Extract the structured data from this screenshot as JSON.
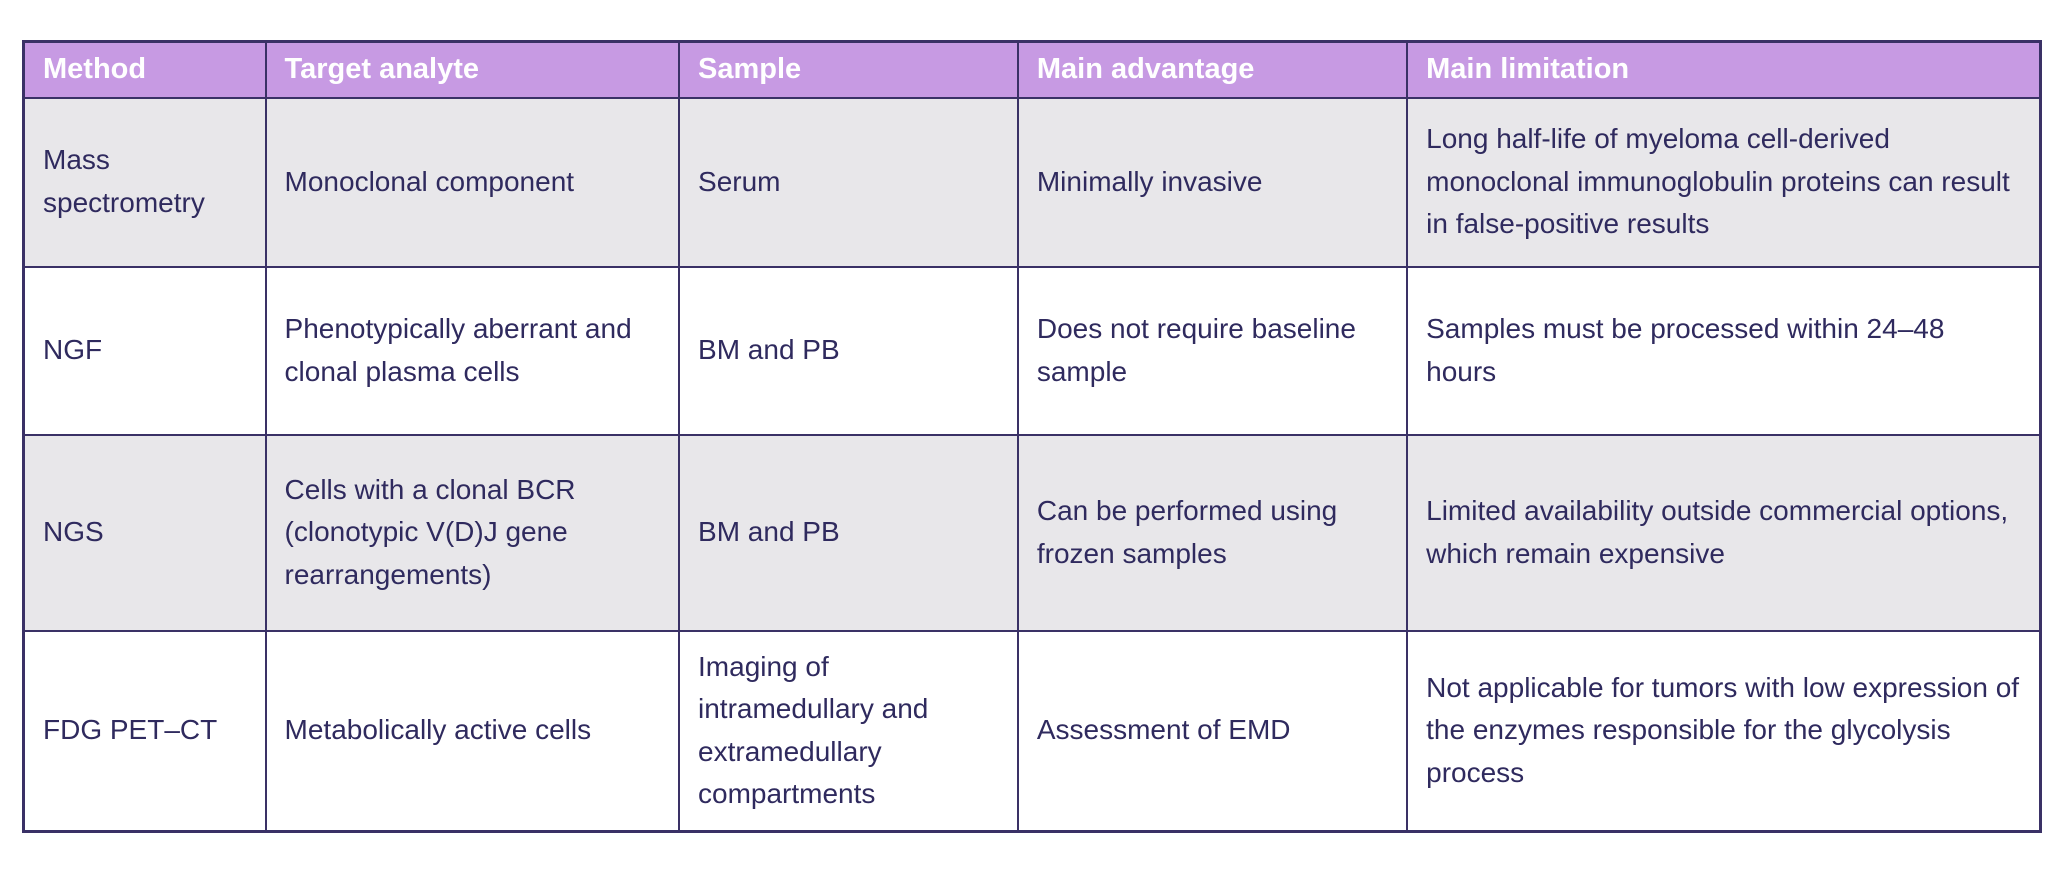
{
  "colors": {
    "header_bg": "#c79ae3",
    "border": "#3a3166",
    "body_text": "#2f2a5e",
    "header_text": "#ffffff",
    "row_alt_bg": "#e8e7ea",
    "row_bg": "#ffffff"
  },
  "table": {
    "columns": [
      "Method",
      "Target analyte",
      "Sample",
      "Main advantage",
      "Main limitation"
    ],
    "rows": [
      {
        "cells": [
          "Mass spectrometry",
          "Monoclonal component",
          "Serum",
          "Minimally invasive",
          "Long half-life of myeloma cell-derived monoclonal immunoglobulin proteins can result in false-positive results"
        ]
      },
      {
        "cells": [
          "NGF",
          "Phenotypically aberrant and clonal plasma cells",
          "BM and PB",
          "Does not require baseline sample",
          "Samples must be processed within 24–48 hours"
        ]
      },
      {
        "cells": [
          "NGS",
          "Cells with a clonal BCR (clonotypic V(D)J gene rearrangements)",
          "BM and PB",
          "Can be performed using frozen samples",
          "Limited availability outside commercial options, which remain expensive"
        ]
      },
      {
        "cells": [
          "FDG PET–CT",
          "Metabolically active cells",
          "Imaging of intramedullary and extramedullary compartments",
          "Assessment of EMD",
          "Not applicable for tumors with low expression of the enzymes responsible for the glycolysis process"
        ]
      }
    ]
  }
}
